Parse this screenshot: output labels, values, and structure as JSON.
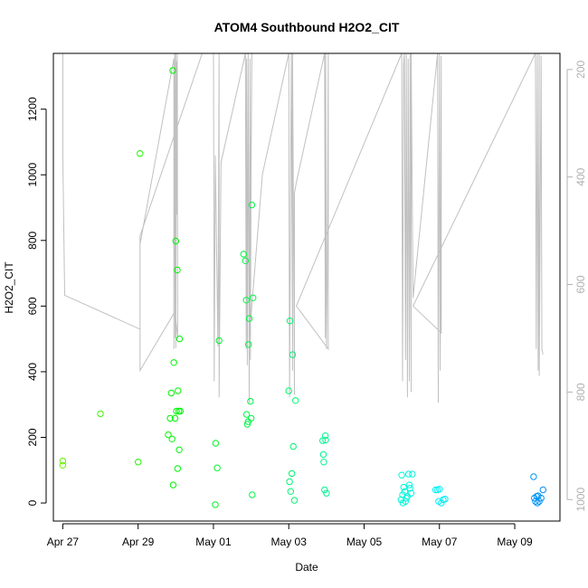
{
  "chart_data": {
    "type": "scatter",
    "title": "ATOM4 Southbound H2O2_CIT",
    "xlabel": "Date",
    "ylabel": "H2O2_CIT",
    "x_ticks": [
      "Apr 27",
      "Apr 29",
      "May 01",
      "May 03",
      "May 05",
      "May 07",
      "May 09"
    ],
    "y_ticks": [
      "0",
      "200",
      "400",
      "600",
      "800",
      "1000",
      "1200"
    ],
    "y2_ticks": [
      "200",
      "400",
      "600",
      "800",
      "1000"
    ],
    "xlim": [
      -0.25,
      13.2
    ],
    "ylim": [
      -55,
      1370
    ],
    "y2lim": [
      1040,
      170
    ],
    "grid": false,
    "colors": {
      "line": "#c0c0c0",
      "axis": "#000000",
      "right_axis": "#b0b0b0"
    },
    "series": [
      {
        "points": [
          [
            0,
            128
          ],
          [
            0,
            115
          ],
          [
            1,
            272
          ],
          [
            2,
            125
          ],
          [
            2.05,
            1065
          ],
          [
            2.8,
            208
          ],
          [
            2.85,
            258
          ],
          [
            2.88,
            335
          ],
          [
            2.9,
            195
          ],
          [
            2.92,
            1318
          ],
          [
            2.93,
            55
          ],
          [
            2.95,
            428
          ],
          [
            2.98,
            258
          ],
          [
            3.0,
            798
          ],
          [
            3.02,
            280
          ],
          [
            3.04,
            710
          ],
          [
            3.05,
            105
          ],
          [
            3.06,
            342
          ],
          [
            3.08,
            280
          ],
          [
            3.09,
            162
          ],
          [
            3.1,
            500
          ],
          [
            3.12,
            280
          ],
          [
            4.05,
            -5
          ],
          [
            4.06,
            182
          ],
          [
            4.1,
            107
          ],
          [
            4.15,
            495
          ],
          [
            4.8,
            758
          ],
          [
            4.85,
            738
          ],
          [
            4.87,
            618
          ],
          [
            4.88,
            270
          ],
          [
            4.9,
            240
          ],
          [
            4.92,
            248
          ],
          [
            4.93,
            483
          ],
          [
            4.95,
            562
          ],
          [
            4.98,
            310
          ],
          [
            5.0,
            258
          ],
          [
            5.02,
            908
          ],
          [
            5.03,
            25
          ],
          [
            5.05,
            625
          ],
          [
            6.0,
            342
          ],
          [
            6.02,
            65
          ],
          [
            6.03,
            555
          ],
          [
            6.05,
            35
          ],
          [
            6.08,
            90
          ],
          [
            6.1,
            452
          ],
          [
            6.12,
            172
          ],
          [
            6.15,
            8
          ],
          [
            6.18,
            312
          ],
          [
            6.9,
            190
          ],
          [
            6.92,
            148
          ],
          [
            6.93,
            125
          ],
          [
            6.95,
            40
          ],
          [
            6.97,
            205
          ],
          [
            6.98,
            192
          ],
          [
            7.0,
            30
          ],
          [
            8.98,
            10
          ],
          [
            9.0,
            85
          ],
          [
            9.02,
            25
          ],
          [
            9.03,
            0
          ],
          [
            9.05,
            48
          ],
          [
            9.08,
            35
          ],
          [
            9.1,
            5
          ],
          [
            9.12,
            15
          ],
          [
            9.15,
            20
          ],
          [
            9.18,
            88
          ],
          [
            9.2,
            55
          ],
          [
            9.22,
            45
          ],
          [
            9.25,
            30
          ],
          [
            9.28,
            88
          ],
          [
            9.9,
            40
          ],
          [
            9.95,
            40
          ],
          [
            9.98,
            5
          ],
          [
            10.0,
            42
          ],
          [
            10.05,
            0
          ],
          [
            10.1,
            10
          ],
          [
            10.15,
            12
          ],
          [
            12.5,
            80
          ],
          [
            12.52,
            15
          ],
          [
            12.55,
            5
          ],
          [
            12.58,
            20
          ],
          [
            12.6,
            0
          ],
          [
            12.62,
            22
          ],
          [
            12.65,
            5
          ],
          [
            12.7,
            15
          ],
          [
            12.75,
            40
          ]
        ]
      },
      {
        "line_x": [
          0,
          0,
          0.05,
          2.05,
          2.05,
          2.05,
          2.95,
          2.95,
          2.96,
          2.97,
          2.98,
          3.0,
          3.0,
          3.02,
          3.03,
          3.04,
          3.05,
          2.98,
          2.05,
          2.05,
          3.7,
          4.0,
          4.02,
          4.05,
          4.12,
          4.15,
          4.15,
          4.2,
          4.85,
          4.87,
          4.88,
          4.9,
          4.92,
          4.95,
          4.97,
          4.98,
          5.0,
          5.02,
          4.95,
          5.3,
          6.0,
          6.02,
          6.05,
          6.07,
          6.1,
          6.1,
          6.15,
          6.15,
          6.2,
          6.95,
          6.97,
          6.98,
          7.0,
          7.02,
          7.05,
          7.05,
          6.2,
          9.0,
          9.02,
          9.05,
          9.07,
          9.1,
          9.12,
          9.15,
          9.17,
          9.2,
          9.22,
          9.25,
          9.25,
          9.3,
          9.95,
          9.97,
          10.0,
          10.02,
          10.05,
          10.05,
          9.3,
          12.55,
          12.57,
          12.6,
          12.62,
          12.65,
          12.65,
          12.7,
          12.72,
          12.75
        ],
        "line_y2": [
          170,
          355,
          620,
          683,
          645,
          525,
          180,
          720,
          260,
          170,
          700,
          165,
          718,
          185,
          470,
          170,
          700,
          650,
          760,
          510,
          168,
          170,
          780,
          360,
          715,
          170,
          810,
          373,
          170,
          720,
          180,
          750,
          170,
          820,
          180,
          740,
          380,
          170,
          700,
          395,
          170,
          810,
          390,
          170,
          760,
          170,
          805,
          430,
          410,
          170,
          700,
          170,
          720,
          600,
          170,
          720,
          640,
          170,
          780,
          190,
          170,
          740,
          170,
          810,
          180,
          780,
          170,
          800,
          170,
          625,
          170,
          820,
          170,
          760,
          175,
          690,
          640,
          170,
          720,
          170,
          760,
          170,
          770,
          175,
          720,
          730
        ]
      }
    ]
  }
}
